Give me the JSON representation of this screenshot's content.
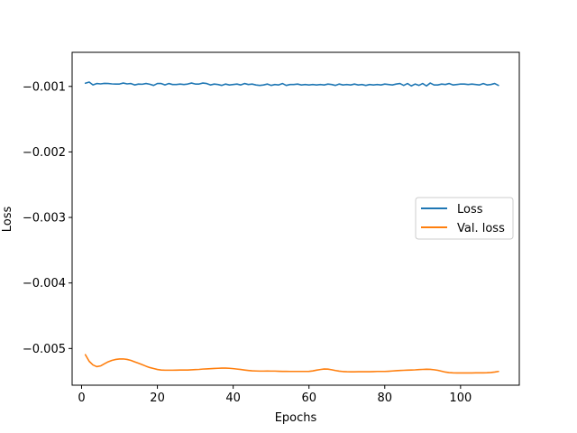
{
  "chart_data": {
    "type": "line",
    "title": "",
    "xlabel": "Epochs",
    "ylabel": "Loss",
    "xlim": [
      -2.5,
      115.5
    ],
    "ylim": [
      -0.00556,
      -0.00048
    ],
    "xticks": [
      0,
      20,
      40,
      60,
      80,
      100
    ],
    "xtick_labels": [
      "0",
      "20",
      "40",
      "60",
      "80",
      "100"
    ],
    "yticks": [
      -0.001,
      -0.002,
      -0.003,
      -0.004,
      -0.005
    ],
    "ytick_labels": [
      "−0.001",
      "−0.002",
      "−0.003",
      "−0.004",
      "−0.005"
    ],
    "grid": false,
    "legend": "center-right",
    "x": [
      1,
      2,
      3,
      4,
      5,
      6,
      7,
      8,
      9,
      10,
      11,
      12,
      13,
      14,
      15,
      16,
      17,
      18,
      19,
      20,
      21,
      22,
      23,
      24,
      25,
      26,
      27,
      28,
      29,
      30,
      31,
      32,
      33,
      34,
      35,
      36,
      37,
      38,
      39,
      40,
      41,
      42,
      43,
      44,
      45,
      46,
      47,
      48,
      49,
      50,
      51,
      52,
      53,
      54,
      55,
      56,
      57,
      58,
      59,
      60,
      61,
      62,
      63,
      64,
      65,
      66,
      67,
      68,
      69,
      70,
      71,
      72,
      73,
      74,
      75,
      76,
      77,
      78,
      79,
      80,
      81,
      82,
      83,
      84,
      85,
      86,
      87,
      88,
      89,
      90,
      91,
      92,
      93,
      94,
      95,
      96,
      97,
      98,
      99,
      100,
      101,
      102,
      103,
      104,
      105,
      106,
      107,
      108,
      109,
      110
    ],
    "series": [
      {
        "name": "Loss",
        "color": "#1f77b4",
        "values": [
          -0.000952,
          -0.000934,
          -0.000978,
          -0.000956,
          -0.000962,
          -0.000954,
          -0.000956,
          -0.000962,
          -0.000964,
          -0.000964,
          -0.000949,
          -0.000962,
          -0.000956,
          -0.000978,
          -0.000964,
          -0.000967,
          -0.000956,
          -0.000967,
          -0.000985,
          -0.000956,
          -0.000956,
          -0.000978,
          -0.000956,
          -0.000971,
          -0.000971,
          -0.000964,
          -0.000971,
          -0.000964,
          -0.000949,
          -0.000964,
          -0.000964,
          -0.000949,
          -0.000956,
          -0.000978,
          -0.000964,
          -0.000971,
          -0.000985,
          -0.000964,
          -0.000978,
          -0.000971,
          -0.000964,
          -0.000978,
          -0.000956,
          -0.000971,
          -0.000964,
          -0.000978,
          -0.000985,
          -0.000978,
          -0.000964,
          -0.000985,
          -0.000971,
          -0.000978,
          -0.000956,
          -0.000985,
          -0.000971,
          -0.000971,
          -0.000964,
          -0.000978,
          -0.000971,
          -0.000978,
          -0.000971,
          -0.000978,
          -0.000971,
          -0.000978,
          -0.000964,
          -0.000971,
          -0.000985,
          -0.000964,
          -0.000978,
          -0.000971,
          -0.000978,
          -0.000964,
          -0.000978,
          -0.000971,
          -0.000985,
          -0.000971,
          -0.000978,
          -0.000971,
          -0.000978,
          -0.000964,
          -0.000971,
          -0.000978,
          -0.000964,
          -0.000956,
          -0.000985,
          -0.000956,
          -0.000993,
          -0.000964,
          -0.000985,
          -0.000956,
          -0.000993,
          -0.000949,
          -0.000978,
          -0.000978,
          -0.000964,
          -0.000971,
          -0.000956,
          -0.000978,
          -0.000971,
          -0.000964,
          -0.000964,
          -0.000971,
          -0.000964,
          -0.000971,
          -0.000978,
          -0.000956,
          -0.000978,
          -0.000971,
          -0.000956,
          -0.000985
        ]
      },
      {
        "name": "Val. loss",
        "color": "#ff7f0e",
        "values": [
          -0.005095,
          -0.005195,
          -0.005251,
          -0.005277,
          -0.005266,
          -0.005234,
          -0.005203,
          -0.005181,
          -0.005167,
          -0.00516,
          -0.005159,
          -0.005167,
          -0.005181,
          -0.005203,
          -0.005225,
          -0.005247,
          -0.00527,
          -0.005291,
          -0.005305,
          -0.00532,
          -0.005328,
          -0.005331,
          -0.005331,
          -0.005331,
          -0.00533,
          -0.005328,
          -0.005328,
          -0.005328,
          -0.005325,
          -0.005322,
          -0.005319,
          -0.005314,
          -0.005311,
          -0.005308,
          -0.005304,
          -0.005302,
          -0.005299,
          -0.0053,
          -0.005302,
          -0.005307,
          -0.005314,
          -0.00532,
          -0.005328,
          -0.005335,
          -0.005341,
          -0.005343,
          -0.005345,
          -0.005345,
          -0.005344,
          -0.005345,
          -0.005345,
          -0.005347,
          -0.005349,
          -0.005349,
          -0.00535,
          -0.00535,
          -0.00535,
          -0.00535,
          -0.00535,
          -0.005349,
          -0.005342,
          -0.00533,
          -0.005321,
          -0.005313,
          -0.005315,
          -0.005324,
          -0.005336,
          -0.005346,
          -0.005352,
          -0.005355,
          -0.005356,
          -0.005356,
          -0.005355,
          -0.005355,
          -0.005354,
          -0.005354,
          -0.005352,
          -0.00535,
          -0.00535,
          -0.00535,
          -0.005347,
          -0.005343,
          -0.005339,
          -0.005336,
          -0.005333,
          -0.00533,
          -0.005328,
          -0.005326,
          -0.005322,
          -0.005319,
          -0.005317,
          -0.005318,
          -0.005324,
          -0.005333,
          -0.005347,
          -0.00536,
          -0.005368,
          -0.005372,
          -0.005373,
          -0.005373,
          -0.005373,
          -0.005373,
          -0.005373,
          -0.005372,
          -0.005372,
          -0.005371,
          -0.00537,
          -0.005366,
          -0.005359,
          -0.00535
        ]
      }
    ]
  }
}
